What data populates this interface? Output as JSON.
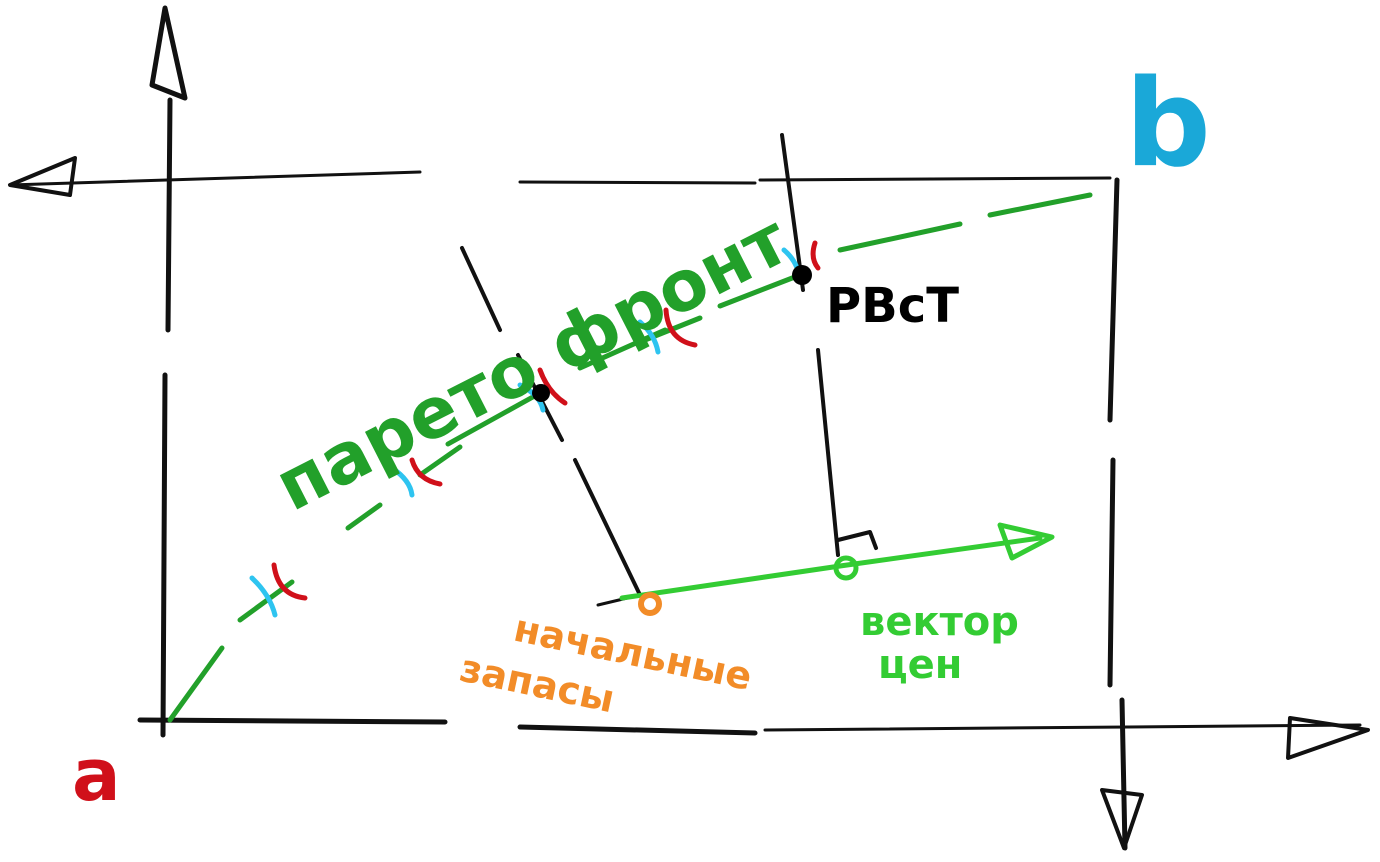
{
  "labels": {
    "origin_a": "a",
    "corner_b": "b",
    "pareto_front": "парето фронт",
    "equilibrium": "PBcT",
    "initial_endowments_line1": "начальные",
    "initial_endowments_line2": "запасы",
    "price_vector_line1": "вектор",
    "price_vector_line2": "цен"
  },
  "colors": {
    "axes": "#111111",
    "pareto": "#22a02a",
    "price_vector": "#33cc33",
    "endowment": "#f28c28",
    "origin_a": "#d0101a",
    "corner_b": "#1aa8d8",
    "indiff_a": "#d0101a",
    "indiff_b": "#2ec4f0",
    "points": "#000000"
  },
  "icons": {
    "arrow_up": "arrow-up-icon",
    "arrow_right": "arrow-right-icon",
    "arrow_left": "arrow-left-icon",
    "arrow_down": "arrow-down-icon"
  }
}
